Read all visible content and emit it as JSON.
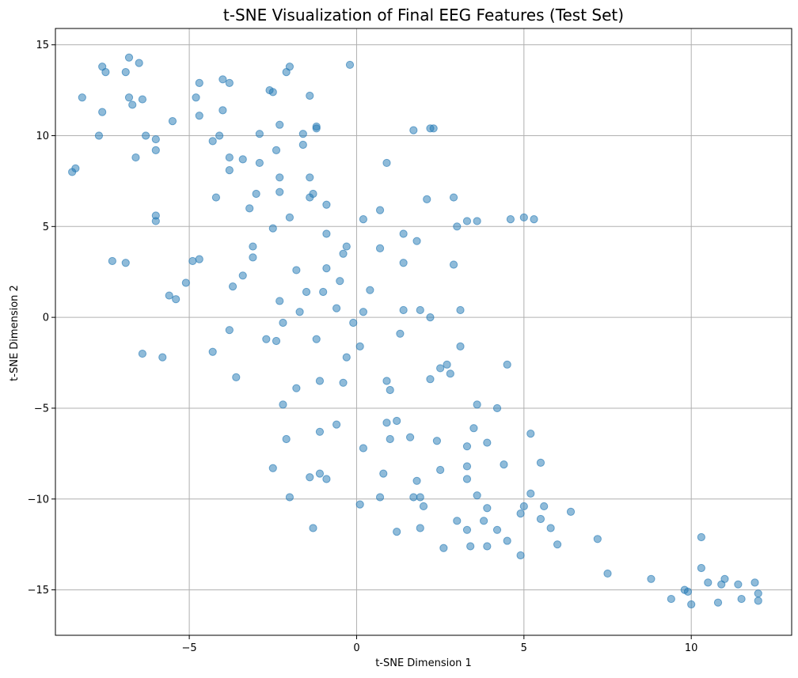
{
  "chart_data": {
    "type": "scatter",
    "title": "t-SNE Visualization of Final EEG Features (Test Set)",
    "xlabel": "t-SNE Dimension 1",
    "ylabel": "t-SNE Dimension 2",
    "xlim": [
      -9.0,
      13.0
    ],
    "ylim": [
      -17.5,
      15.9
    ],
    "xticks": [
      -5,
      0,
      5,
      10
    ],
    "yticks": [
      -15,
      -10,
      -5,
      0,
      5,
      10,
      15
    ],
    "xtick_labels": [
      "−5",
      "0",
      "5",
      "10"
    ],
    "ytick_labels": [
      "−15",
      "−10",
      "−5",
      "0",
      "5",
      "10",
      "15"
    ],
    "grid": true,
    "color": "#1f77b4",
    "points": [
      [
        -6.8,
        14.3
      ],
      [
        -6.5,
        14.0
      ],
      [
        -7.6,
        13.8
      ],
      [
        -7.5,
        13.5
      ],
      [
        -6.9,
        13.5
      ],
      [
        -8.2,
        12.1
      ],
      [
        -6.8,
        12.1
      ],
      [
        -6.4,
        12.0
      ],
      [
        -6.7,
        11.7
      ],
      [
        -7.6,
        11.3
      ],
      [
        -7.7,
        10.0
      ],
      [
        -6.3,
        10.0
      ],
      [
        -6.0,
        9.8
      ],
      [
        -6.0,
        9.2
      ],
      [
        -6.6,
        8.8
      ],
      [
        -8.4,
        8.2
      ],
      [
        -8.5,
        8.0
      ],
      [
        -5.5,
        10.8
      ],
      [
        -4.7,
        12.9
      ],
      [
        -4.0,
        13.1
      ],
      [
        -3.8,
        12.9
      ],
      [
        -4.8,
        12.1
      ],
      [
        -4.7,
        11.1
      ],
      [
        -4.0,
        11.4
      ],
      [
        -2.0,
        13.8
      ],
      [
        -2.1,
        13.5
      ],
      [
        -0.2,
        13.9
      ],
      [
        -2.6,
        12.5
      ],
      [
        -2.5,
        12.4
      ],
      [
        -1.4,
        12.2
      ],
      [
        -2.3,
        10.6
      ],
      [
        -1.2,
        10.5
      ],
      [
        -1.2,
        10.4
      ],
      [
        -1.6,
        10.1
      ],
      [
        -2.9,
        10.1
      ],
      [
        -4.1,
        10.0
      ],
      [
        -4.3,
        9.7
      ],
      [
        -1.6,
        9.5
      ],
      [
        -2.4,
        9.2
      ],
      [
        -3.8,
        8.8
      ],
      [
        -3.4,
        8.7
      ],
      [
        -2.9,
        8.5
      ],
      [
        -3.8,
        8.1
      ],
      [
        1.7,
        10.3
      ],
      [
        2.2,
        10.4
      ],
      [
        2.3,
        10.4
      ],
      [
        0.9,
        8.5
      ],
      [
        -6.0,
        5.6
      ],
      [
        -6.0,
        5.3
      ],
      [
        -4.2,
        6.6
      ],
      [
        -3.0,
        6.8
      ],
      [
        -2.3,
        7.7
      ],
      [
        -2.3,
        6.9
      ],
      [
        -1.4,
        7.7
      ],
      [
        -1.3,
        6.8
      ],
      [
        -1.4,
        6.6
      ],
      [
        -0.9,
        6.2
      ],
      [
        -3.2,
        6.0
      ],
      [
        -2.0,
        5.5
      ],
      [
        -2.5,
        4.9
      ],
      [
        -0.9,
        4.6
      ],
      [
        0.2,
        5.4
      ],
      [
        0.7,
        5.9
      ],
      [
        2.1,
        6.5
      ],
      [
        2.9,
        6.6
      ],
      [
        3.0,
        5.0
      ],
      [
        3.3,
        5.3
      ],
      [
        3.6,
        5.3
      ],
      [
        4.6,
        5.4
      ],
      [
        5.0,
        5.5
      ],
      [
        5.3,
        5.4
      ],
      [
        1.4,
        4.6
      ],
      [
        1.8,
        4.2
      ],
      [
        0.7,
        3.8
      ],
      [
        -0.3,
        3.9
      ],
      [
        -0.4,
        3.5
      ],
      [
        -7.3,
        3.1
      ],
      [
        -6.9,
        3.0
      ],
      [
        -4.9,
        3.1
      ],
      [
        -4.7,
        3.2
      ],
      [
        -3.1,
        3.9
      ],
      [
        -3.1,
        3.3
      ],
      [
        -0.9,
        2.7
      ],
      [
        1.4,
        3.0
      ],
      [
        2.9,
        2.9
      ],
      [
        -3.4,
        2.3
      ],
      [
        -1.8,
        2.6
      ],
      [
        -0.5,
        2.0
      ],
      [
        -5.1,
        1.9
      ],
      [
        -3.7,
        1.7
      ],
      [
        0.4,
        1.5
      ],
      [
        -1.0,
        1.4
      ],
      [
        -1.5,
        1.4
      ],
      [
        -5.6,
        1.2
      ],
      [
        -5.4,
        1.0
      ],
      [
        -2.3,
        0.9
      ],
      [
        -0.6,
        0.5
      ],
      [
        -1.7,
        0.3
      ],
      [
        0.2,
        0.3
      ],
      [
        1.4,
        0.4
      ],
      [
        1.9,
        0.4
      ],
      [
        3.1,
        0.4
      ],
      [
        2.2,
        0.0
      ],
      [
        -2.2,
        -0.3
      ],
      [
        -0.1,
        -0.3
      ],
      [
        -3.8,
        -0.7
      ],
      [
        1.3,
        -0.9
      ],
      [
        -2.7,
        -1.2
      ],
      [
        -2.4,
        -1.3
      ],
      [
        -1.2,
        -1.2
      ],
      [
        0.1,
        -1.6
      ],
      [
        3.1,
        -1.6
      ],
      [
        -4.3,
        -1.9
      ],
      [
        -6.4,
        -2.0
      ],
      [
        -5.8,
        -2.2
      ],
      [
        -0.3,
        -2.2
      ],
      [
        2.7,
        -2.6
      ],
      [
        4.5,
        -2.6
      ],
      [
        2.5,
        -2.8
      ],
      [
        2.8,
        -3.1
      ],
      [
        -3.6,
        -3.3
      ],
      [
        -1.1,
        -3.5
      ],
      [
        -0.4,
        -3.6
      ],
      [
        0.9,
        -3.5
      ],
      [
        2.2,
        -3.4
      ],
      [
        -1.8,
        -3.9
      ],
      [
        1.0,
        -4.0
      ],
      [
        -2.2,
        -4.8
      ],
      [
        3.6,
        -4.8
      ],
      [
        4.2,
        -5.0
      ],
      [
        -0.6,
        -5.9
      ],
      [
        1.2,
        -5.7
      ],
      [
        0.9,
        -5.8
      ],
      [
        -1.1,
        -6.3
      ],
      [
        3.5,
        -6.1
      ],
      [
        5.2,
        -6.4
      ],
      [
        -2.1,
        -6.7
      ],
      [
        1.0,
        -6.7
      ],
      [
        1.6,
        -6.6
      ],
      [
        2.4,
        -6.8
      ],
      [
        3.9,
        -6.9
      ],
      [
        3.3,
        -7.1
      ],
      [
        0.2,
        -7.2
      ],
      [
        5.5,
        -8.0
      ],
      [
        4.4,
        -8.1
      ],
      [
        3.3,
        -8.2
      ],
      [
        -2.5,
        -8.3
      ],
      [
        2.5,
        -8.4
      ],
      [
        -1.1,
        -8.6
      ],
      [
        -1.4,
        -8.8
      ],
      [
        -0.9,
        -8.9
      ],
      [
        0.8,
        -8.6
      ],
      [
        1.8,
        -9.0
      ],
      [
        3.3,
        -8.9
      ],
      [
        5.2,
        -9.7
      ],
      [
        3.6,
        -9.8
      ],
      [
        -2.0,
        -9.9
      ],
      [
        0.7,
        -9.9
      ],
      [
        1.7,
        -9.9
      ],
      [
        1.9,
        -9.9
      ],
      [
        0.1,
        -10.3
      ],
      [
        2.0,
        -10.4
      ],
      [
        3.9,
        -10.5
      ],
      [
        5.0,
        -10.4
      ],
      [
        5.6,
        -10.4
      ],
      [
        4.9,
        -10.8
      ],
      [
        6.4,
        -10.7
      ],
      [
        5.5,
        -11.1
      ],
      [
        3.0,
        -11.2
      ],
      [
        3.8,
        -11.2
      ],
      [
        -1.3,
        -11.6
      ],
      [
        1.9,
        -11.6
      ],
      [
        3.3,
        -11.7
      ],
      [
        4.2,
        -11.7
      ],
      [
        5.8,
        -11.6
      ],
      [
        1.2,
        -11.8
      ],
      [
        7.2,
        -12.2
      ],
      [
        4.5,
        -12.3
      ],
      [
        6.0,
        -12.5
      ],
      [
        3.9,
        -12.6
      ],
      [
        2.6,
        -12.7
      ],
      [
        3.4,
        -12.6
      ],
      [
        4.9,
        -13.1
      ],
      [
        10.3,
        -12.1
      ],
      [
        10.3,
        -13.8
      ],
      [
        7.5,
        -14.1
      ],
      [
        8.8,
        -14.4
      ],
      [
        11.0,
        -14.4
      ],
      [
        10.5,
        -14.6
      ],
      [
        11.4,
        -14.7
      ],
      [
        10.9,
        -14.7
      ],
      [
        11.9,
        -14.6
      ],
      [
        9.8,
        -15.0
      ],
      [
        9.9,
        -15.1
      ],
      [
        12.0,
        -15.2
      ],
      [
        9.4,
        -15.5
      ],
      [
        11.5,
        -15.5
      ],
      [
        12.0,
        -15.6
      ],
      [
        10.8,
        -15.7
      ],
      [
        10.0,
        -15.8
      ]
    ]
  }
}
